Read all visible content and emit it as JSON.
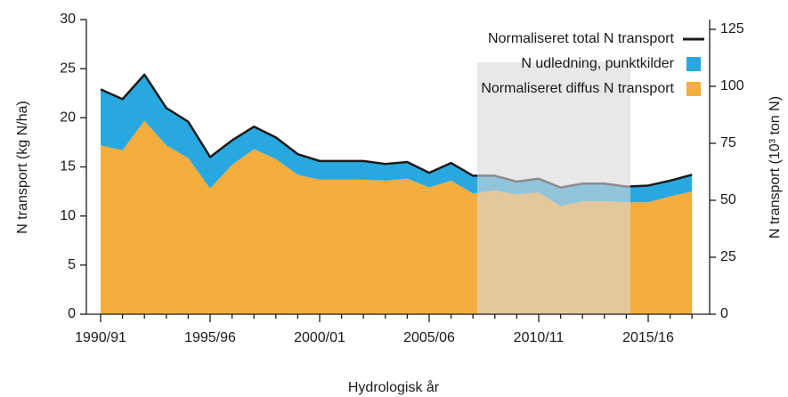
{
  "chart_data": {
    "type": "stacked_area",
    "categories": [
      "1990/91",
      null,
      null,
      null,
      null,
      "1995/96",
      null,
      null,
      null,
      null,
      "2000/01",
      null,
      null,
      null,
      null,
      "2005/06",
      null,
      null,
      null,
      null,
      "2010/11",
      null,
      null,
      null,
      null,
      "2015/16",
      null,
      null
    ],
    "series": [
      {
        "name": "Normaliseret diffus N transport",
        "color": "#f5ad3e",
        "values": [
          17.2,
          16.7,
          19.7,
          17.2,
          15.9,
          12.8,
          15.2,
          16.8,
          15.8,
          14.2,
          13.7,
          13.7,
          13.7,
          13.6,
          13.8,
          12.9,
          13.6,
          12.3,
          12.6,
          12.2,
          12.4,
          11.0,
          11.5,
          11.5,
          11.4,
          11.4,
          12.0,
          12.5
        ]
      },
      {
        "name": "N udledning, punktkilder",
        "color": "#29a8e0",
        "values": [
          5.7,
          5.2,
          4.7,
          3.8,
          3.7,
          3.2,
          2.5,
          2.3,
          2.2,
          2.1,
          1.9,
          1.9,
          1.9,
          1.7,
          1.7,
          1.5,
          1.8,
          1.8,
          1.5,
          1.3,
          1.4,
          1.9,
          1.8,
          1.8,
          1.6,
          1.7,
          1.6,
          1.7
        ]
      },
      {
        "name": "Normaliseret total N transport",
        "color": "#1a1a1a",
        "type": "line",
        "values": [
          22.9,
          21.9,
          24.4,
          21.0,
          19.6,
          16.0,
          17.7,
          19.1,
          18.0,
          16.3,
          15.6,
          15.6,
          15.6,
          15.3,
          15.5,
          14.4,
          15.4,
          14.1,
          14.1,
          13.5,
          13.8,
          12.9,
          13.3,
          13.3,
          13.0,
          13.1,
          13.6,
          14.2
        ]
      }
    ],
    "x_label": "Hydrologisk år",
    "y_label": "N transport (kg N/ha)",
    "y2_label": "N transport (10³ ton N)",
    "ylim": [
      0,
      30
    ],
    "yticks": [
      0,
      5,
      10,
      15,
      20,
      25,
      30
    ],
    "y2lim": [
      0,
      129.3
    ],
    "y2ticks": [
      0,
      25,
      50,
      75,
      100,
      125
    ],
    "grid": false,
    "legend": "upper right"
  }
}
